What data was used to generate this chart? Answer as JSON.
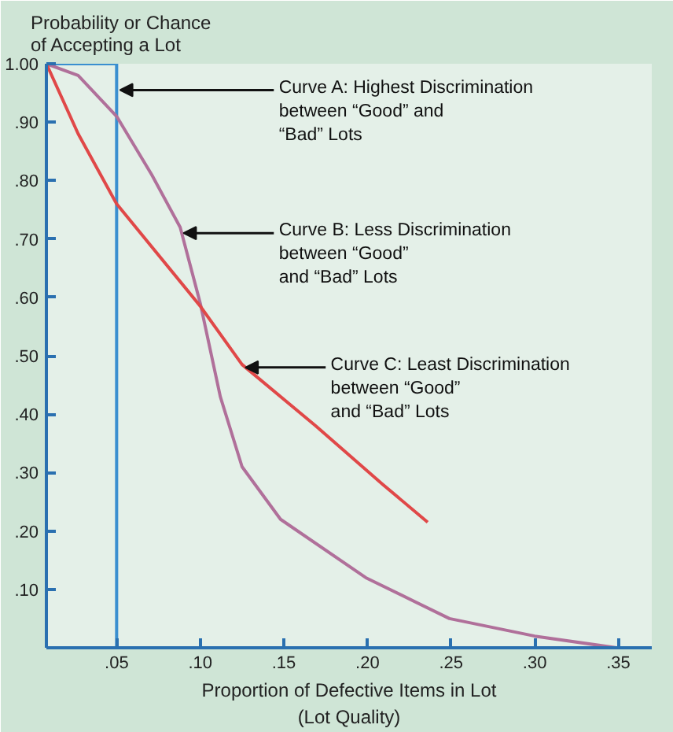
{
  "chart_data": {
    "type": "line",
    "ylabel": "Probability or Chance\nof Accepting a Lot",
    "xlabel": "Proportion of Defective Items in Lot\n(Lot Quality)",
    "xlim": [
      0.008,
      0.37
    ],
    "ylim": [
      0,
      1.0
    ],
    "xticks": [
      {
        "value": 0.05,
        "label": ".05"
      },
      {
        "value": 0.1,
        "label": ".10"
      },
      {
        "value": 0.15,
        "label": ".15"
      },
      {
        "value": 0.2,
        "label": ".20"
      },
      {
        "value": 0.25,
        "label": ".25"
      },
      {
        "value": 0.3,
        "label": ".30"
      },
      {
        "value": 0.35,
        "label": ".35"
      }
    ],
    "yticks": [
      {
        "value": 0.1,
        "label": ".10"
      },
      {
        "value": 0.2,
        "label": ".20"
      },
      {
        "value": 0.3,
        "label": ".30"
      },
      {
        "value": 0.4,
        "label": ".40"
      },
      {
        "value": 0.5,
        "label": ".50"
      },
      {
        "value": 0.6,
        "label": ".60"
      },
      {
        "value": 0.7,
        "label": ".70"
      },
      {
        "value": 0.8,
        "label": ".80"
      },
      {
        "value": 0.9,
        "label": ".90"
      },
      {
        "value": 1.0,
        "label": "1.00"
      }
    ],
    "grid": false,
    "marker": "none",
    "line_style": "solid",
    "series": [
      {
        "color": "#3a8fd0",
        "x": [
          0.008,
          0.05,
          0.05
        ],
        "values": [
          1.0,
          1.0,
          0
        ]
      },
      {
        "color": "#b0709a",
        "x": [
          0.008,
          0.027,
          0.05,
          0.071,
          0.088,
          0.1,
          0.112,
          0.125,
          0.148,
          0.199,
          0.249,
          0.3,
          0.349
        ],
        "values": [
          1.0,
          0.98,
          0.91,
          0.81,
          0.72,
          0.59,
          0.43,
          0.31,
          0.22,
          0.12,
          0.05,
          0.02,
          0.0
        ]
      },
      {
        "color": "#e04848",
        "x": [
          0.008,
          0.027,
          0.05,
          0.1,
          0.125,
          0.169,
          0.209,
          0.236
        ],
        "values": [
          1.0,
          0.88,
          0.76,
          0.585,
          0.485,
          0.38,
          0.28,
          0.215
        ]
      }
    ],
    "annotations": [
      {
        "text": "Curve A: Highest Discrimination\n             between “Good” and\n             “Bad” Lots",
        "x": 0.05,
        "y": 0.955
      },
      {
        "text": "Curve B: Less Discrimination\n              between “Good”\n              and “Bad” Lots",
        "x": 0.088,
        "y": 0.71
      },
      {
        "text": "Curve C: Least Discrimination\n                between “Good”\n                and “Bad” Lots",
        "x": 0.125,
        "y": 0.48
      }
    ]
  }
}
